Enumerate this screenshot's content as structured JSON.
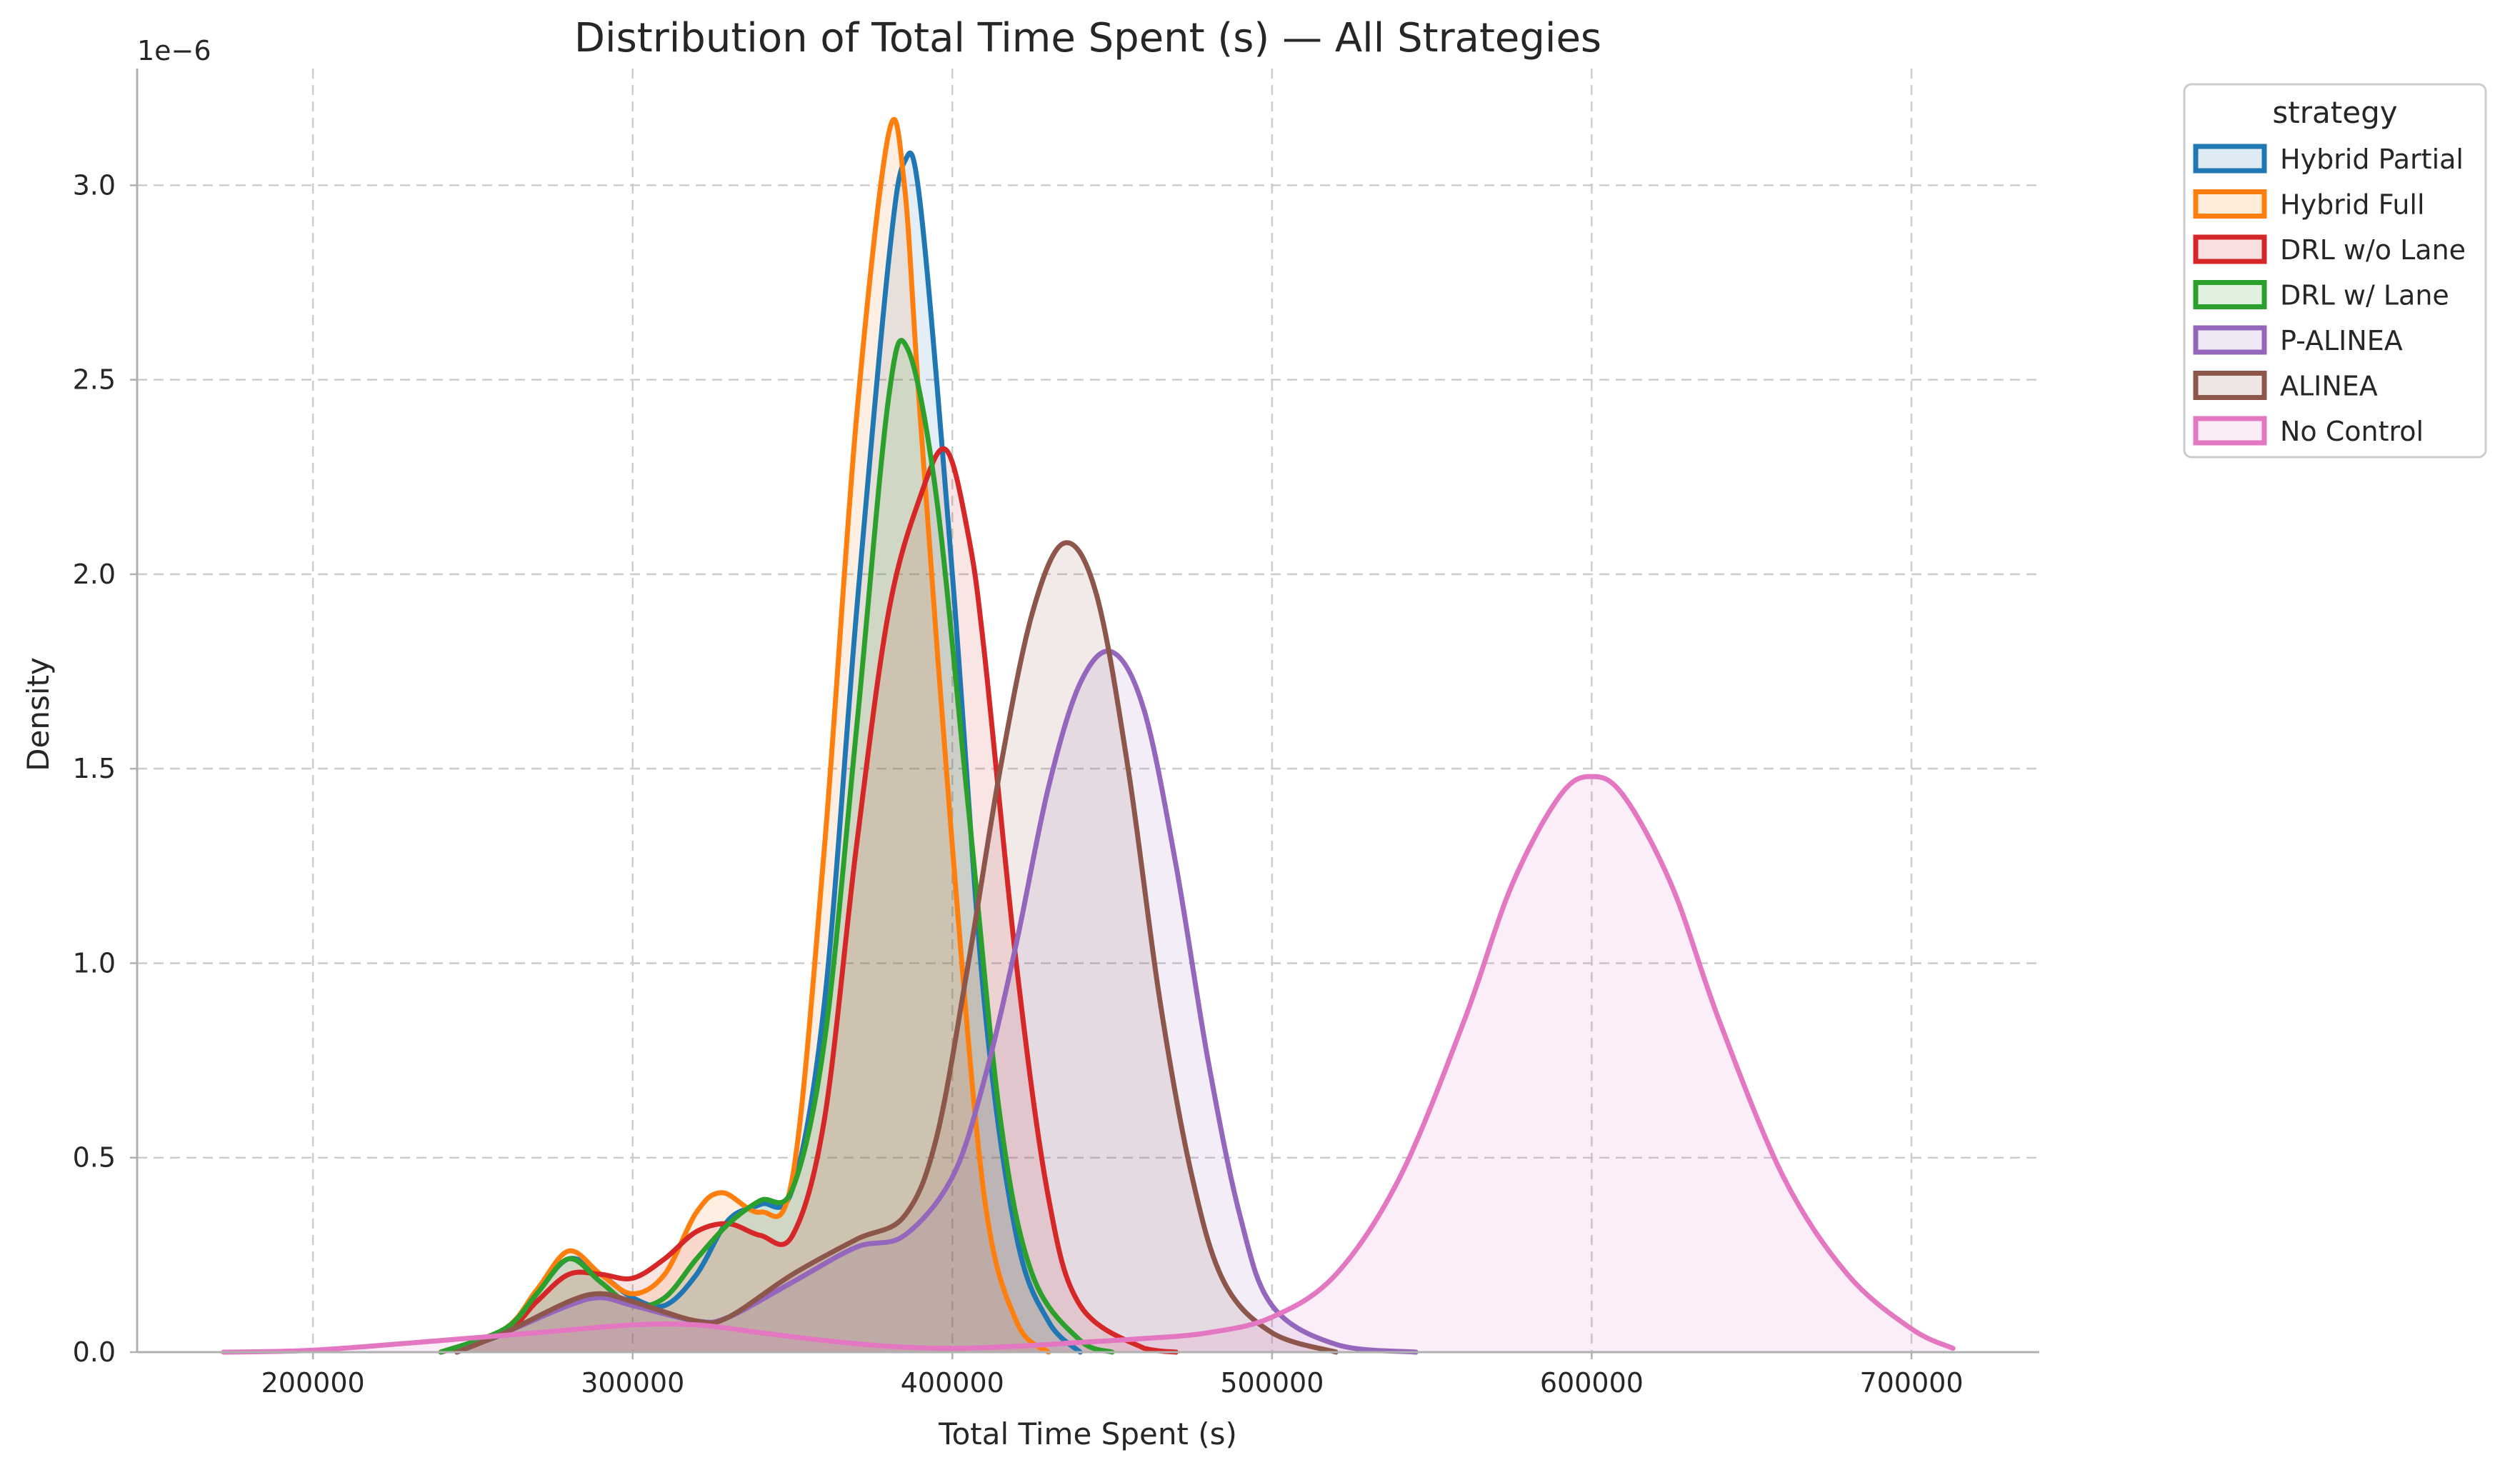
{
  "chart_data": {
    "type": "area",
    "title": "Distribution of Total Time Spent (s) — All Strategies",
    "xlabel": "Total Time Spent (s)",
    "ylabel": "Density",
    "y_offset_label": "1e−6",
    "y_scale": 1e-06,
    "xlim": [
      145000,
      740000
    ],
    "ylim": [
      0,
      3.3
    ],
    "x_ticks": [
      200000,
      300000,
      400000,
      500000,
      600000,
      700000
    ],
    "x_tick_labels": [
      "200000",
      "300000",
      "400000",
      "500000",
      "600000",
      "700000"
    ],
    "y_ticks": [
      0,
      0.5,
      1.0,
      1.5,
      2.0,
      2.5,
      3.0
    ],
    "y_tick_labels": [
      "0.0",
      "0.5",
      "1.0",
      "1.5",
      "2.0",
      "2.5",
      "3.0"
    ],
    "grid": true,
    "legend": {
      "title": "strategy",
      "placement": "outside-top-right"
    },
    "series": [
      {
        "name": "Hybrid Partial",
        "color": "#1f77b4",
        "points": [
          [
            240000,
            0
          ],
          [
            260000,
            0.05
          ],
          [
            270000,
            0.15
          ],
          [
            280000,
            0.24
          ],
          [
            290000,
            0.2
          ],
          [
            300000,
            0.14
          ],
          [
            310000,
            0.12
          ],
          [
            320000,
            0.2
          ],
          [
            330000,
            0.34
          ],
          [
            340000,
            0.38
          ],
          [
            350000,
            0.42
          ],
          [
            360000,
            0.9
          ],
          [
            370000,
            1.9
          ],
          [
            380000,
            2.8
          ],
          [
            385000,
            3.06
          ],
          [
            390000,
            2.95
          ],
          [
            400000,
            2.0
          ],
          [
            410000,
            0.9
          ],
          [
            420000,
            0.3
          ],
          [
            430000,
            0.08
          ],
          [
            440000,
            0
          ]
        ]
      },
      {
        "name": "Hybrid Full",
        "color": "#ff7f0e",
        "points": [
          [
            240000,
            0
          ],
          [
            260000,
            0.06
          ],
          [
            270000,
            0.16
          ],
          [
            280000,
            0.26
          ],
          [
            290000,
            0.2
          ],
          [
            300000,
            0.15
          ],
          [
            310000,
            0.2
          ],
          [
            320000,
            0.36
          ],
          [
            328000,
            0.41
          ],
          [
            340000,
            0.36
          ],
          [
            350000,
            0.45
          ],
          [
            360000,
            1.3
          ],
          [
            370000,
            2.4
          ],
          [
            380000,
            3.13
          ],
          [
            385000,
            3.0
          ],
          [
            390000,
            2.4
          ],
          [
            400000,
            1.3
          ],
          [
            410000,
            0.4
          ],
          [
            420000,
            0.08
          ],
          [
            430000,
            0
          ]
        ]
      },
      {
        "name": "DRL w/o Lane",
        "color": "#d62728",
        "points": [
          [
            240000,
            0
          ],
          [
            260000,
            0.05
          ],
          [
            270000,
            0.13
          ],
          [
            280000,
            0.2
          ],
          [
            290000,
            0.2
          ],
          [
            300000,
            0.19
          ],
          [
            310000,
            0.24
          ],
          [
            320000,
            0.31
          ],
          [
            330000,
            0.33
          ],
          [
            340000,
            0.3
          ],
          [
            350000,
            0.3
          ],
          [
            360000,
            0.6
          ],
          [
            370000,
            1.3
          ],
          [
            380000,
            1.9
          ],
          [
            390000,
            2.2
          ],
          [
            398000,
            2.32
          ],
          [
            405000,
            2.1
          ],
          [
            410000,
            1.8
          ],
          [
            420000,
            1.0
          ],
          [
            430000,
            0.4
          ],
          [
            440000,
            0.12
          ],
          [
            460000,
            0.01
          ],
          [
            470000,
            0
          ]
        ]
      },
      {
        "name": "DRL w/ Lane",
        "color": "#2ca02c",
        "points": [
          [
            240000,
            0
          ],
          [
            260000,
            0.06
          ],
          [
            270000,
            0.15
          ],
          [
            280000,
            0.24
          ],
          [
            290000,
            0.18
          ],
          [
            300000,
            0.12
          ],
          [
            310000,
            0.14
          ],
          [
            320000,
            0.24
          ],
          [
            330000,
            0.33
          ],
          [
            340000,
            0.39
          ],
          [
            350000,
            0.42
          ],
          [
            360000,
            0.8
          ],
          [
            370000,
            1.6
          ],
          [
            380000,
            2.45
          ],
          [
            386000,
            2.58
          ],
          [
            395000,
            2.2
          ],
          [
            405000,
            1.4
          ],
          [
            415000,
            0.6
          ],
          [
            425000,
            0.2
          ],
          [
            440000,
            0.03
          ],
          [
            450000,
            0
          ]
        ]
      },
      {
        "name": "P-ALINEA",
        "color": "#9467bd",
        "points": [
          [
            245000,
            0
          ],
          [
            260000,
            0.05
          ],
          [
            280000,
            0.12
          ],
          [
            290000,
            0.14
          ],
          [
            300000,
            0.12
          ],
          [
            320000,
            0.08
          ],
          [
            330000,
            0.09
          ],
          [
            350000,
            0.18
          ],
          [
            370000,
            0.27
          ],
          [
            385000,
            0.3
          ],
          [
            400000,
            0.45
          ],
          [
            410000,
            0.7
          ],
          [
            420000,
            1.05
          ],
          [
            430000,
            1.45
          ],
          [
            440000,
            1.72
          ],
          [
            450000,
            1.8
          ],
          [
            460000,
            1.65
          ],
          [
            470000,
            1.25
          ],
          [
            480000,
            0.75
          ],
          [
            490000,
            0.35
          ],
          [
            500000,
            0.12
          ],
          [
            520000,
            0.02
          ],
          [
            545000,
            0
          ]
        ]
      },
      {
        "name": "ALINEA",
        "color": "#8c564b",
        "points": [
          [
            245000,
            0
          ],
          [
            260000,
            0.05
          ],
          [
            280000,
            0.13
          ],
          [
            290000,
            0.15
          ],
          [
            300000,
            0.13
          ],
          [
            320000,
            0.08
          ],
          [
            330000,
            0.09
          ],
          [
            350000,
            0.2
          ],
          [
            370000,
            0.29
          ],
          [
            385000,
            0.35
          ],
          [
            395000,
            0.55
          ],
          [
            405000,
            1.0
          ],
          [
            415000,
            1.5
          ],
          [
            425000,
            1.9
          ],
          [
            435000,
            2.08
          ],
          [
            445000,
            1.95
          ],
          [
            455000,
            1.5
          ],
          [
            465000,
            0.9
          ],
          [
            475000,
            0.45
          ],
          [
            485000,
            0.18
          ],
          [
            500000,
            0.05
          ],
          [
            520000,
            0
          ]
        ]
      },
      {
        "name": "No Control",
        "color": "#e377c2",
        "points": [
          [
            172000,
            0
          ],
          [
            200000,
            0.005
          ],
          [
            240000,
            0.03
          ],
          [
            270000,
            0.05
          ],
          [
            300000,
            0.07
          ],
          [
            320000,
            0.07
          ],
          [
            340000,
            0.05
          ],
          [
            360000,
            0.03
          ],
          [
            380000,
            0.015
          ],
          [
            400000,
            0.01
          ],
          [
            420000,
            0.015
          ],
          [
            440000,
            0.025
          ],
          [
            460000,
            0.035
          ],
          [
            480000,
            0.05
          ],
          [
            500000,
            0.09
          ],
          [
            520000,
            0.2
          ],
          [
            540000,
            0.45
          ],
          [
            560000,
            0.85
          ],
          [
            575000,
            1.2
          ],
          [
            590000,
            1.43
          ],
          [
            600000,
            1.48
          ],
          [
            610000,
            1.43
          ],
          [
            625000,
            1.2
          ],
          [
            640000,
            0.85
          ],
          [
            660000,
            0.45
          ],
          [
            680000,
            0.2
          ],
          [
            700000,
            0.06
          ],
          [
            713000,
            0.01
          ]
        ]
      }
    ]
  }
}
